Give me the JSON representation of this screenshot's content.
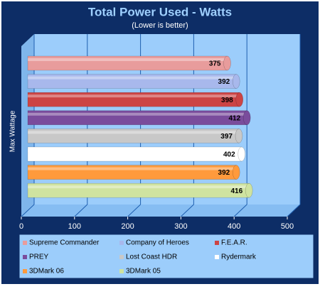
{
  "chart_data": {
    "type": "bar",
    "orientation": "horizontal",
    "title": "Total Power Used - Watts",
    "subtitle": "(Lower is better)",
    "categories": [
      "Max Wattage"
    ],
    "series": [
      {
        "name": "Supreme Commander",
        "color": "#e89c9c",
        "values": [
          375
        ]
      },
      {
        "name": "Company of Heroes",
        "color": "#a8b8ec",
        "values": [
          392
        ]
      },
      {
        "name": "F.E.A.R.",
        "color": "#cc4444",
        "values": [
          398
        ]
      },
      {
        "name": "PREY",
        "color": "#7a4c9c",
        "values": [
          412
        ]
      },
      {
        "name": "Lost Coast HDR",
        "color": "#c8c8c8",
        "values": [
          397
        ]
      },
      {
        "name": "Rydermark",
        "color": "#ffffff",
        "values": [
          402
        ]
      },
      {
        "name": "3DMark 06",
        "color": "#ff9a3c",
        "values": [
          392
        ]
      },
      {
        "name": "3DMark 05",
        "color": "#cfe3a0",
        "values": [
          416
        ]
      }
    ],
    "xlim": [
      0,
      500
    ],
    "xticks": [
      0,
      100,
      200,
      300,
      400,
      500
    ],
    "grid": true,
    "legend": "bottom"
  }
}
